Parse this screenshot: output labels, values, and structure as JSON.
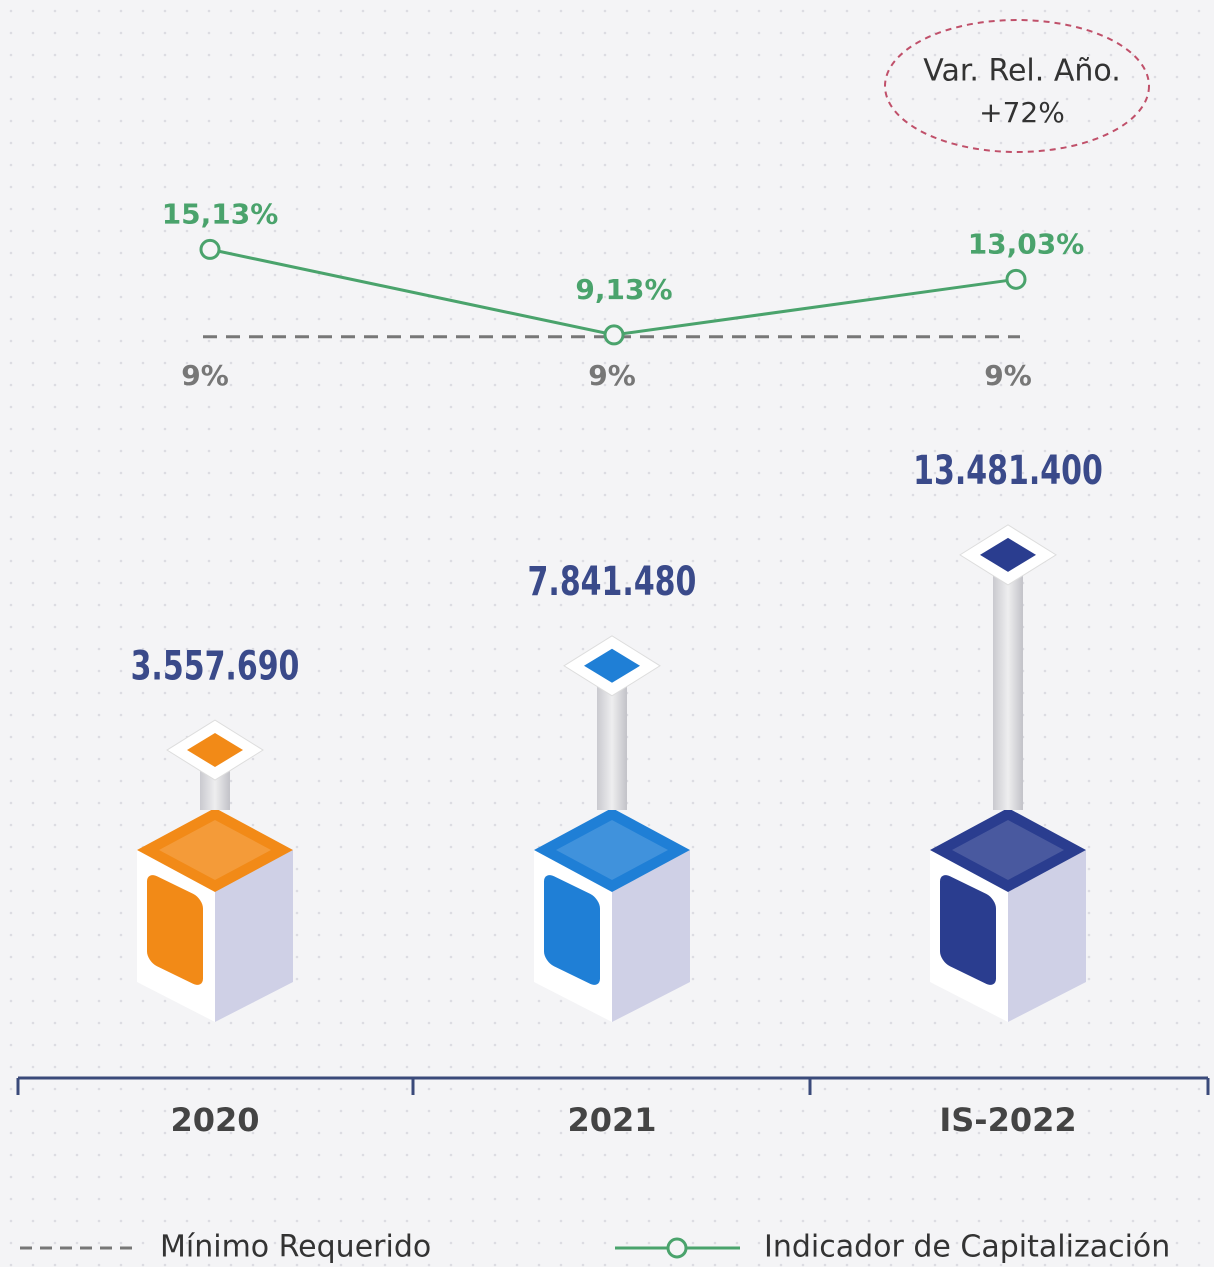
{
  "chart_data": {
    "type": "bar",
    "categories": [
      "2020",
      "2021",
      "IS-2022"
    ],
    "values": [
      3557690,
      7841480,
      13481400
    ],
    "value_labels": [
      "3.557.690",
      "7.841.480",
      "13.481.400"
    ],
    "colors": [
      "#f28a17",
      "#1f7fd6",
      "#2a3d8f"
    ],
    "ylim": [
      0,
      15000000
    ],
    "y2lim": [
      8,
      16
    ],
    "series": [
      {
        "name": "Indicador de Capitalización",
        "type": "line",
        "axis": "y2",
        "color": "#4aa36c",
        "values": [
          15.13,
          9.13,
          13.03
        ],
        "value_labels": [
          "15,13%",
          "9,13%",
          "13,03%"
        ]
      },
      {
        "name": "Mínimo Requerido",
        "type": "dashed",
        "axis": "y2",
        "color": "#777777",
        "values": [
          9,
          9,
          9
        ],
        "value_labels": [
          "9%",
          "9%",
          "9%"
        ]
      }
    ],
    "annotation": [
      "Var. Rel. Año.",
      "+72%"
    ]
  }
}
